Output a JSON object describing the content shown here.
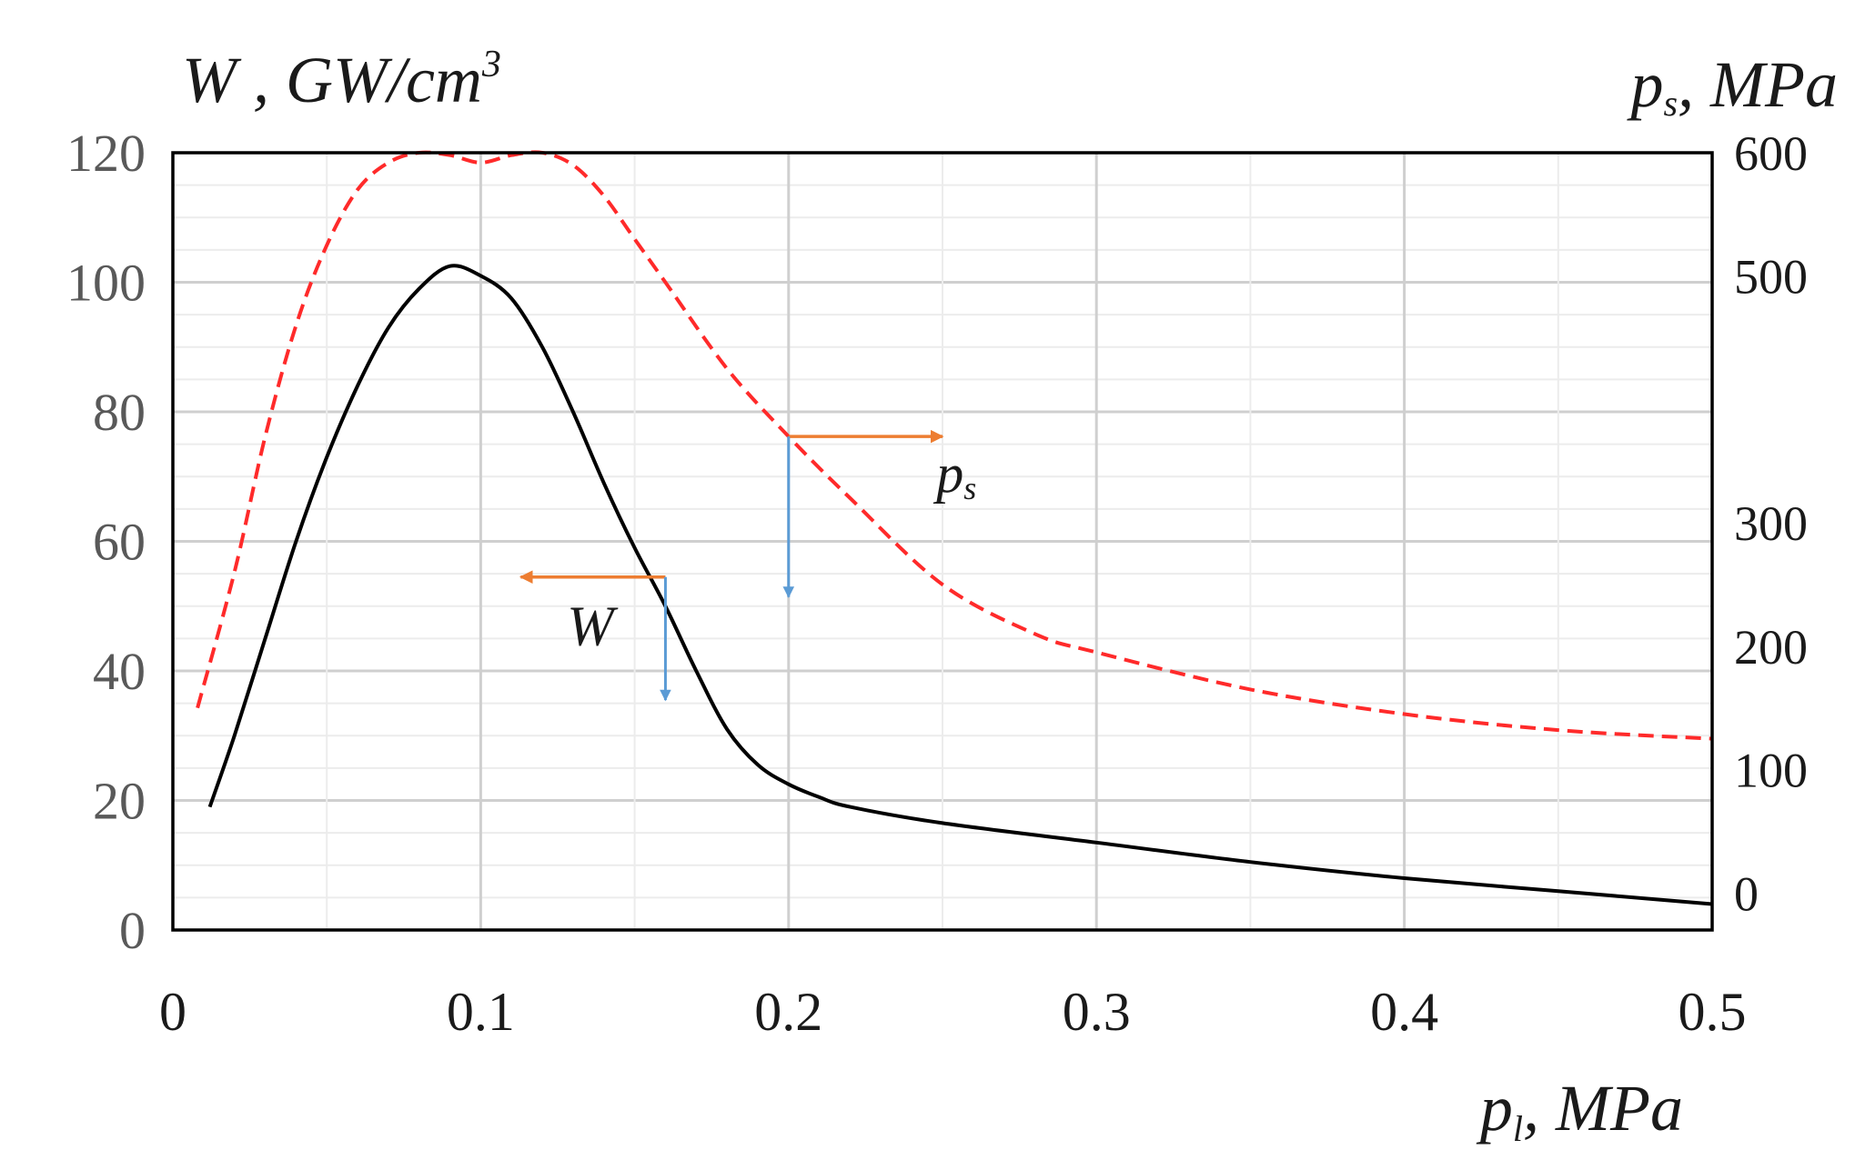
{
  "chart_data": {
    "type": "line",
    "title": "",
    "xlabel": {
      "main": "p",
      "sub": "l",
      "unit": ", MPa"
    },
    "ylabel_left": {
      "main": "W",
      "unit": " , GW/cm",
      "sup": "3"
    },
    "ylabel_right": {
      "main": "p",
      "sub": "s",
      "unit": ", MPa"
    },
    "xlim": [
      0,
      0.5
    ],
    "ylim_left": [
      0,
      120
    ],
    "ylim_right": [
      -30,
      600
    ],
    "x_ticks": [
      0,
      0.1,
      0.2,
      0.3,
      0.4,
      0.5
    ],
    "x_tick_labels": [
      "0",
      "0.1",
      "0.2",
      "0.3",
      "0.4",
      "0.5"
    ],
    "y_left_ticks": [
      0,
      20,
      40,
      60,
      80,
      100,
      120
    ],
    "y_left_tick_labels": [
      "0",
      "20",
      "40",
      "60",
      "80",
      "100",
      "120"
    ],
    "y_right_ticks": [
      0,
      100,
      200,
      300,
      500,
      600
    ],
    "y_right_tick_labels": [
      "0",
      "100",
      "200",
      "300",
      "500",
      "600"
    ],
    "grid": true,
    "series": [
      {
        "name": "W",
        "axis": "left",
        "color": "#000000",
        "style": "solid",
        "x": [
          0.012,
          0.02,
          0.03,
          0.04,
          0.05,
          0.06,
          0.07,
          0.08,
          0.09,
          0.1,
          0.11,
          0.12,
          0.13,
          0.14,
          0.15,
          0.16,
          0.17,
          0.18,
          0.19,
          0.2,
          0.21,
          0.22,
          0.25,
          0.3,
          0.35,
          0.4,
          0.45,
          0.5
        ],
        "values": [
          19,
          30,
          45,
          60,
          73,
          84,
          93,
          99,
          102.5,
          101,
          97.5,
          90,
          80,
          69,
          59,
          50,
          40,
          31,
          25.5,
          22.5,
          20.5,
          19,
          16.5,
          13.5,
          10.5,
          8,
          6,
          4
        ]
      },
      {
        "name": "p_s",
        "axis": "right",
        "color": "#ff2a2a",
        "style": "dashed",
        "x": [
          0.008,
          0.02,
          0.03,
          0.04,
          0.05,
          0.06,
          0.07,
          0.08,
          0.09,
          0.1,
          0.11,
          0.12,
          0.13,
          0.14,
          0.15,
          0.16,
          0.18,
          0.2,
          0.22,
          0.25,
          0.28,
          0.3,
          0.35,
          0.4,
          0.45,
          0.5
        ],
        "values": [
          150,
          260,
          370,
          460,
          525,
          570,
          592,
          600,
          598,
          592,
          598,
          600,
          590,
          565,
          530,
          495,
          425,
          370,
          320,
          250,
          210,
          195,
          165,
          145,
          132,
          125
        ]
      }
    ],
    "annotations": {
      "ps_label": {
        "main": "p",
        "sub": "s",
        "at": [
          0.248,
          325
        ]
      },
      "w_label": {
        "text": "W",
        "at": [
          0.128,
          44
        ]
      },
      "ps_arrows": {
        "anchor": [
          0.2,
          370
        ],
        "right_to_x": 0.25,
        "down_to": 240
      },
      "w_arrows": {
        "anchor": [
          0.16,
          54.5
        ],
        "left_to_x": 0.113,
        "down_to": 35.5
      },
      "arrow_colors": {
        "orange": "#ed7d31",
        "blue": "#5b9bd5"
      }
    }
  }
}
